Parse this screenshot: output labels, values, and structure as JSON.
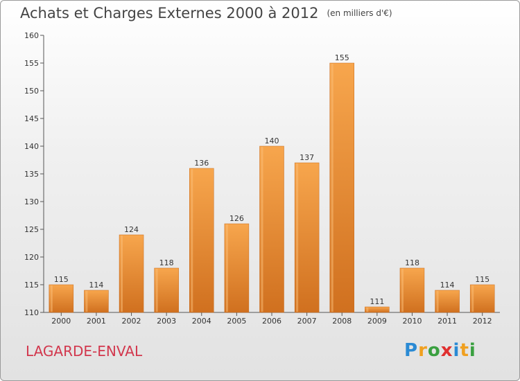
{
  "title": "Achats et Charges Externes 2000 à 2012",
  "unit": "(en milliers d'€)",
  "place": "LAGARDE-ENVAL",
  "logo": "Proxiti",
  "colors": {
    "bar_top": "#f7a64d",
    "bar_bottom": "#d0701f",
    "axis": "#555555",
    "place": "#d2374d"
  },
  "chart_data": {
    "type": "bar",
    "title": "Achats et Charges Externes 2000 à 2012",
    "subtitle": "(en milliers d'€)",
    "xlabel": "",
    "ylabel": "",
    "categories": [
      "2000",
      "2001",
      "2002",
      "2003",
      "2004",
      "2005",
      "2006",
      "2007",
      "2008",
      "2009",
      "2010",
      "2011",
      "2012"
    ],
    "values": [
      115,
      114,
      124,
      118,
      136,
      126,
      140,
      137,
      155,
      111,
      118,
      114,
      115
    ],
    "ylim": [
      110,
      160
    ],
    "yticks": [
      110,
      115,
      120,
      125,
      130,
      135,
      140,
      145,
      150,
      155,
      160
    ],
    "grid": false
  }
}
